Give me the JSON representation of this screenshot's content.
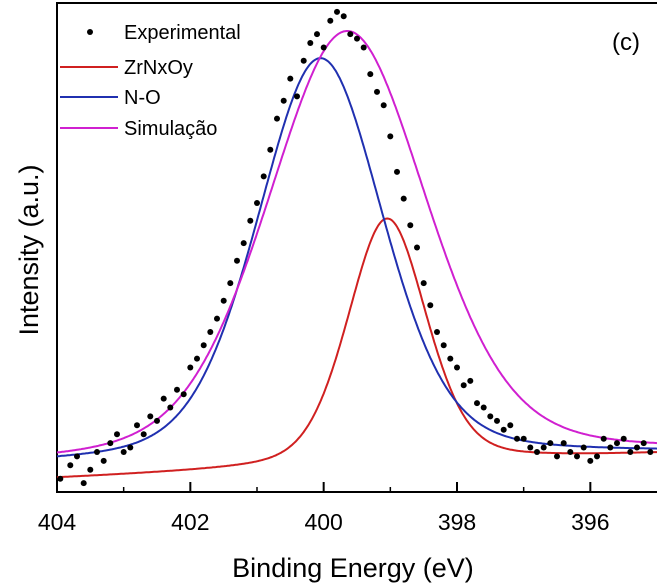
{
  "chart_data": {
    "type": "line",
    "panel_label": "(c)",
    "xlabel": "Binding Energy (eV)",
    "ylabel": "Intensity (a.u.)",
    "xlim": [
      404,
      395
    ],
    "x_reversed": true,
    "ylim": [
      0,
      1.1
    ],
    "x_ticks": [
      404,
      402,
      400,
      398,
      396
    ],
    "y_ticks_shown": false,
    "grid": false,
    "legend_position": "top-left",
    "colors": {
      "experimental": "#000000",
      "zrnxoy": "#d02020",
      "n_o": "#2030b0",
      "simulacao": "#d020d0"
    },
    "series": [
      {
        "name": "Experimental",
        "style": "markers",
        "x": [
          403.95,
          403.8,
          403.7,
          403.6,
          403.5,
          403.4,
          403.3,
          403.2,
          403.1,
          403.0,
          402.9,
          402.8,
          402.7,
          402.6,
          402.5,
          402.4,
          402.3,
          402.2,
          402.1,
          402.0,
          401.9,
          401.8,
          401.7,
          401.6,
          401.5,
          401.4,
          401.3,
          401.2,
          401.1,
          401.0,
          400.9,
          400.8,
          400.7,
          400.6,
          400.5,
          400.4,
          400.3,
          400.2,
          400.1,
          400.0,
          399.9,
          399.8,
          399.7,
          399.6,
          399.5,
          399.4,
          399.3,
          399.2,
          399.1,
          399.0,
          398.9,
          398.8,
          398.7,
          398.6,
          398.5,
          398.4,
          398.3,
          398.2,
          398.1,
          398.0,
          397.9,
          397.8,
          397.7,
          397.6,
          397.5,
          397.4,
          397.3,
          397.2,
          397.1,
          397.0,
          396.9,
          396.8,
          396.7,
          396.6,
          396.5,
          396.4,
          396.3,
          396.2,
          396.1,
          396.0,
          395.9,
          395.8,
          395.7,
          395.6,
          395.5,
          395.4,
          395.3,
          395.2,
          395.1
        ],
        "y": [
          0.03,
          0.06,
          0.08,
          0.02,
          0.05,
          0.09,
          0.07,
          0.11,
          0.13,
          0.09,
          0.1,
          0.15,
          0.13,
          0.17,
          0.16,
          0.21,
          0.19,
          0.23,
          0.22,
          0.28,
          0.3,
          0.33,
          0.36,
          0.39,
          0.43,
          0.47,
          0.52,
          0.56,
          0.61,
          0.65,
          0.71,
          0.77,
          0.84,
          0.88,
          0.93,
          0.89,
          0.97,
          1.01,
          1.03,
          1.0,
          1.06,
          1.08,
          1.07,
          1.03,
          1.02,
          1.0,
          0.94,
          0.9,
          0.87,
          0.8,
          0.72,
          0.66,
          0.6,
          0.55,
          0.47,
          0.42,
          0.36,
          0.33,
          0.3,
          0.28,
          0.24,
          0.25,
          0.2,
          0.19,
          0.17,
          0.16,
          0.14,
          0.15,
          0.12,
          0.12,
          0.1,
          0.09,
          0.1,
          0.11,
          0.08,
          0.11,
          0.09,
          0.08,
          0.1,
          0.07,
          0.08,
          0.12,
          0.1,
          0.11,
          0.12,
          0.09,
          0.1,
          0.11,
          0.09
        ]
      },
      {
        "name": "ZrNxOy",
        "style": "line",
        "peak": {
          "center": 399.05,
          "height": 0.555,
          "hwhm": 0.7
        },
        "baseline": [
          0.03,
          0.085
        ]
      },
      {
        "name": "N-O",
        "style": "line",
        "peak": {
          "center": 400.05,
          "height": 0.905,
          "hwhm": 1.12
        },
        "baseline": [
          0.06,
          0.085
        ]
      },
      {
        "name": "Simulação",
        "style": "line",
        "peak": {
          "center": 399.65,
          "height": 0.965,
          "hwhm": 1.42
        },
        "baseline": [
          0.06,
          0.085
        ]
      }
    ]
  }
}
